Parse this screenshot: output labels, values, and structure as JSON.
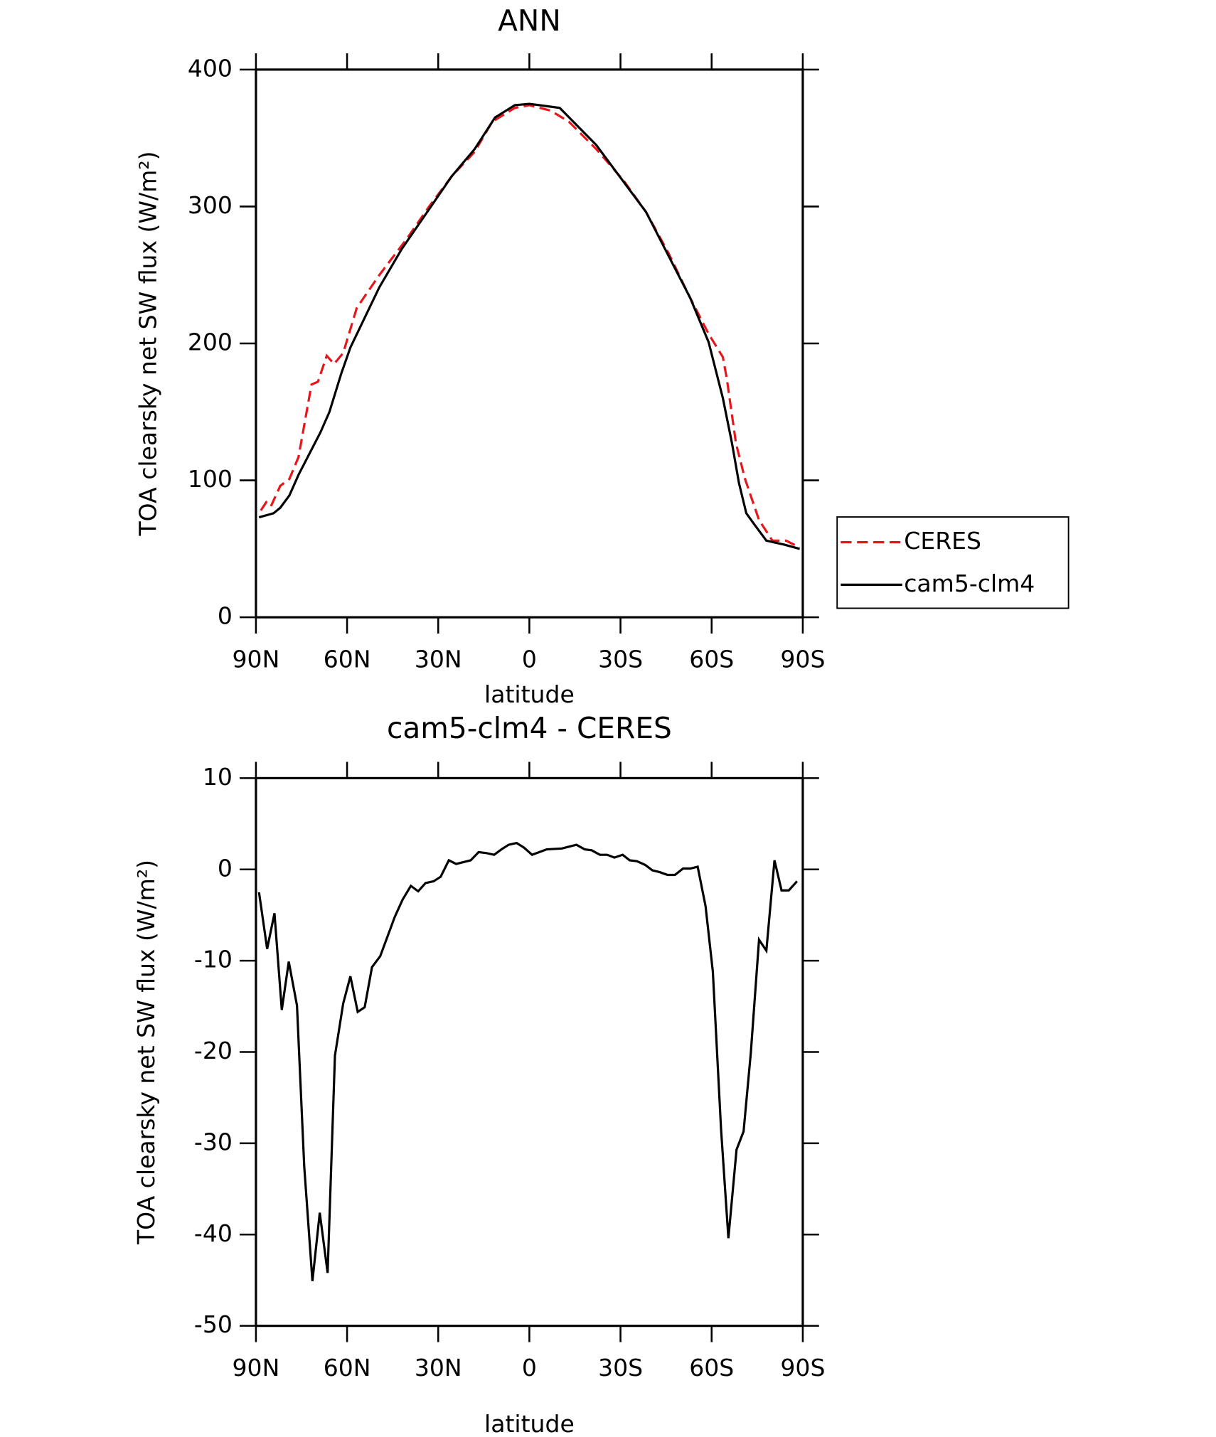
{
  "chart_data": [
    {
      "type": "line",
      "title": "ANN",
      "xlabel": "latitude",
      "ylabel": "TOA clearsky net SW flux (W/m²)",
      "xlim": [
        90,
        -90
      ],
      "ylim": [
        0,
        400
      ],
      "xticks": [
        {
          "value": 90,
          "label": "90N"
        },
        {
          "value": 60,
          "label": "60N"
        },
        {
          "value": 30,
          "label": "30N"
        },
        0,
        {
          "value": -30,
          "label": "30S"
        },
        {
          "value": -60,
          "label": "60S"
        },
        {
          "value": -90,
          "label": "90S"
        }
      ],
      "yticks": [
        0,
        100,
        200,
        300,
        400
      ],
      "legend": "right",
      "series": [
        {
          "name": "CERES",
          "color": "#e8161b",
          "dash": true,
          "x": [
            88.4,
            86.6,
            85.1,
            82,
            79,
            76,
            71.7,
            69.6,
            66.7,
            64.3,
            61.3,
            56.8,
            49.4,
            40.5,
            33,
            25.6,
            18,
            12.2,
            4.8,
            0,
            -7,
            -13,
            -22,
            -31,
            -38.4,
            -45.8,
            -53,
            -59,
            -63.7,
            -65,
            -68,
            -71,
            -75.6,
            -80,
            -84.5,
            -89
          ],
          "values": [
            78,
            84,
            81,
            96,
            101,
            117,
            170,
            172,
            191,
            185,
            193,
            226,
            250,
            276,
            300,
            322,
            340,
            362,
            372,
            374,
            370,
            362,
            342,
            319,
            296,
            266,
            233,
            207,
            190,
            174,
            127,
            101,
            71,
            56,
            56,
            51
          ]
        },
        {
          "name": "cam5-clm4",
          "color": "#000000",
          "dash": false,
          "x": [
            89,
            84.2,
            82,
            79,
            76,
            68.8,
            65.8,
            61.9,
            58.9,
            49.4,
            42,
            33,
            25.6,
            18,
            11.3,
            4.8,
            0,
            -10,
            -22,
            -38.4,
            -53,
            -59,
            -63.7,
            -66.7,
            -69,
            -71.4,
            -74,
            -78,
            -84,
            -89
          ],
          "values": [
            73,
            76,
            80,
            89,
            104,
            135,
            150,
            178,
            197,
            241,
            269,
            298,
            322,
            342,
            365,
            374,
            375,
            372,
            345,
            296,
            233,
            201,
            160,
            127,
            98,
            76,
            68,
            56,
            53,
            50
          ]
        }
      ]
    },
    {
      "type": "line",
      "title": "cam5-clm4 - CERES",
      "xlabel": "latitude",
      "ylabel": "TOA clearsky net SW flux (W/m²)",
      "xlim": [
        90,
        -90
      ],
      "ylim": [
        -50,
        10
      ],
      "xticks": [
        {
          "value": 90,
          "label": "90N"
        },
        {
          "value": 60,
          "label": "60N"
        },
        {
          "value": 30,
          "label": "30N"
        },
        0,
        {
          "value": -30,
          "label": "30S"
        },
        {
          "value": -60,
          "label": "60S"
        },
        {
          "value": -90,
          "label": "90S"
        }
      ],
      "yticks": [
        -50,
        -40,
        -30,
        -20,
        -10,
        0,
        10
      ],
      "color": "#000000",
      "x": [
        89,
        86.3,
        83.9,
        81.5,
        79.2,
        76.5,
        74.1,
        71.4,
        69,
        66.4,
        64,
        61.3,
        58.9,
        56.5,
        54.2,
        51.8,
        49.1,
        44.3,
        41.7,
        39,
        36.6,
        34.2,
        31.5,
        29.2,
        26.5,
        24.1,
        19.3,
        16.7,
        14.3,
        11.6,
        9.2,
        6.8,
        4.2,
        1.8,
        -0.9,
        -3.3,
        -5.7,
        -10.7,
        -15.5,
        -18.2,
        -20.5,
        -23.2,
        -25.6,
        -28,
        -30.7,
        -33,
        -35.4,
        -38.1,
        -40.5,
        -42.9,
        -45.5,
        -47.9,
        -50.6,
        -53,
        -55.4,
        -58,
        -60.4,
        -63.1,
        -65.5,
        -68.2,
        -70.5,
        -72.9,
        -75.6,
        -78,
        -80.7,
        -83,
        -85.4,
        -88.1
      ],
      "values": [
        -2.5,
        -8.7,
        -4.8,
        -15.4,
        -10.1,
        -14.9,
        -32.5,
        -45.1,
        -37.6,
        -44.2,
        -20.4,
        -14.7,
        -11.7,
        -15.6,
        -15.1,
        -10.7,
        -9.5,
        -5.2,
        -3.3,
        -1.8,
        -2.4,
        -1.5,
        -1.3,
        -0.8,
        1.0,
        0.6,
        1.0,
        1.9,
        1.8,
        1.6,
        2.2,
        2.7,
        2.9,
        2.4,
        1.6,
        1.9,
        2.2,
        2.3,
        2.7,
        2.2,
        2.1,
        1.6,
        1.6,
        1.3,
        1.6,
        1.0,
        0.9,
        0.5,
        -0.1,
        -0.3,
        -0.6,
        -0.6,
        0.1,
        0.1,
        0.3,
        -4.0,
        -11.2,
        -28.5,
        -40.4,
        -30.7,
        -28.7,
        -20.1,
        -7.7,
        -8.9,
        1.0,
        -2.3,
        -2.3,
        -1.3
      ]
    }
  ]
}
